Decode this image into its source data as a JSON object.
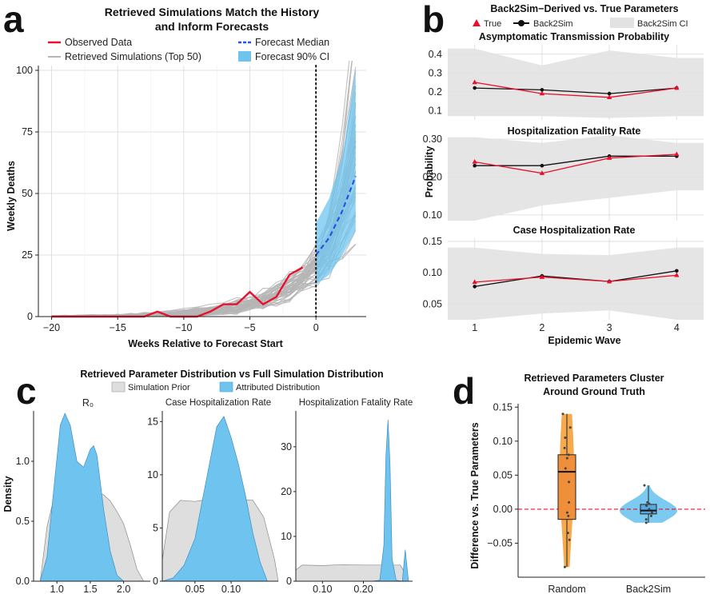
{
  "panel_labels": [
    "a",
    "b",
    "c",
    "d"
  ],
  "chart_data": [
    {
      "panel": "a",
      "type": "line",
      "title": "Retrieved Simulations Match the History and Inform Forecasts",
      "title_lines": [
        "Retrieved Simulations Match the History",
        "and Inform Forecasts"
      ],
      "xlabel": "Weeks Relative to Forecast Start",
      "ylabel": "Weekly Deaths",
      "xlim": [
        -21,
        3.8
      ],
      "ylim": [
        0,
        100
      ],
      "xticks": [
        -20,
        -15,
        -10,
        -5,
        0
      ],
      "yticks": [
        0,
        25,
        50,
        75,
        100
      ],
      "grid": true,
      "legend": [
        "Observed Data",
        "Retrieved Simulations (Top 50)",
        "Forecast Median",
        "Forecast 90% CI"
      ],
      "observed": {
        "x": [
          -20,
          -19,
          -18,
          -17,
          -16,
          -15,
          -14,
          -13,
          -12,
          -11,
          -10,
          -9,
          -8,
          -7,
          -6,
          -5,
          -4,
          -3,
          -2,
          -1
        ],
        "y": [
          0,
          0,
          0,
          0,
          0,
          0,
          0,
          0,
          2,
          0,
          0,
          0,
          2,
          5,
          5,
          10,
          5,
          8,
          17,
          20
        ]
      },
      "forecast_median": {
        "x": [
          0,
          1,
          2,
          3
        ],
        "y": [
          25,
          32,
          43,
          57
        ]
      },
      "forecast_ci": {
        "x": [
          0,
          1,
          2,
          3
        ],
        "lower": [
          13,
          17,
          25,
          35
        ],
        "upper": [
          38,
          48,
          65,
          100
        ]
      },
      "colors": {
        "observed": "#e8112d",
        "simulations": "#b5b5b5",
        "median": "#2155e6",
        "ci": "#6fc4ef"
      }
    },
    {
      "panel": "b",
      "type": "line",
      "title": "Back2Sim−Derived vs. True Parameters",
      "legend": [
        "True",
        "Back2Sim",
        "Back2Sim CI"
      ],
      "xlabel": "Epidemic Wave",
      "ylabel": "Probability",
      "x": [
        1,
        2,
        3,
        4
      ],
      "subplots": [
        {
          "title": "Asymptomatic Transmission Probability",
          "ylim": [
            0.05,
            0.45
          ],
          "yticks": [
            0.1,
            0.2,
            0.3,
            0.4
          ],
          "ytick_labels": [
            "0.1",
            "0.2",
            "0.3",
            "0.4"
          ],
          "true": [
            0.25,
            0.19,
            0.17,
            0.22
          ],
          "back2sim": [
            0.22,
            0.21,
            0.19,
            0.22
          ],
          "ci_lower": [
            0.07,
            0.07,
            0.06,
            0.07
          ],
          "ci_upper": [
            0.43,
            0.34,
            0.42,
            0.38
          ]
        },
        {
          "title": "Hospitalization Fatality Rate",
          "ylim": [
            0.085,
            0.3
          ],
          "yticks": [
            0.1,
            0.2,
            0.3
          ],
          "ytick_labels": [
            "0.10",
            "0.20",
            "0.30"
          ],
          "true": [
            0.24,
            0.21,
            0.25,
            0.26
          ],
          "back2sim": [
            0.23,
            0.23,
            0.255,
            0.255
          ],
          "ci_lower": [
            0.085,
            0.125,
            0.145,
            0.165
          ],
          "ci_upper": [
            0.305,
            0.29,
            0.31,
            0.29
          ]
        },
        {
          "title": "Case Hospitalization Rate",
          "ylim": [
            0.025,
            0.155
          ],
          "yticks": [
            0.05,
            0.1,
            0.15
          ],
          "ytick_labels": [
            "0.05",
            "0.10",
            "0.15"
          ],
          "true": [
            0.085,
            0.093,
            0.086,
            0.096
          ],
          "back2sim": [
            0.078,
            0.095,
            0.086,
            0.103
          ],
          "ci_lower": [
            0.025,
            0.035,
            0.04,
            0.025
          ],
          "ci_upper": [
            0.14,
            0.13,
            0.128,
            0.14
          ]
        }
      ],
      "colors": {
        "true": "#e8112d",
        "back2sim": "#111111",
        "ci": "#e2e2e2"
      }
    },
    {
      "panel": "c",
      "type": "area",
      "title": "Retrieved Parameter Distribution vs Full Simulation Distribution",
      "legend": [
        "Simulation Prior",
        "Attributed Distribution"
      ],
      "ylabel": "Density",
      "subplots": [
        {
          "title": "R₀",
          "xlim": [
            0.65,
            2.4
          ],
          "ylim": [
            0,
            1.42
          ],
          "xticks": [
            1.0,
            1.5,
            2.0
          ],
          "xtick_labels": [
            "1.0",
            "1.5",
            "2.0"
          ],
          "yticks": [
            0.0,
            0.5,
            1.0
          ],
          "ytick_labels": [
            "0.0",
            "0.5",
            "1.0"
          ],
          "prior": {
            "x": [
              0.75,
              0.85,
              1.0,
              1.1,
              1.2,
              1.3,
              1.4,
              1.5,
              1.6,
              1.7,
              1.8,
              1.9,
              2.0,
              2.1,
              2.2,
              2.3
            ],
            "y": [
              0.0,
              0.45,
              0.8,
              0.95,
              1.0,
              0.97,
              0.88,
              0.83,
              0.75,
              0.72,
              0.67,
              0.58,
              0.48,
              0.3,
              0.1,
              0.0
            ]
          },
          "attributed": {
            "x": [
              0.75,
              0.85,
              0.95,
              1.05,
              1.12,
              1.2,
              1.3,
              1.4,
              1.5,
              1.55,
              1.6,
              1.7,
              1.8,
              1.9,
              2.0
            ],
            "y": [
              0.0,
              0.2,
              0.75,
              1.3,
              1.4,
              1.3,
              1.0,
              0.95,
              1.1,
              1.13,
              1.05,
              0.6,
              0.25,
              0.05,
              0.0
            ]
          }
        },
        {
          "title": "Case Hospitalization Rate",
          "xlim": [
            0.005,
            0.165
          ],
          "ylim": [
            0,
            16
          ],
          "xticks": [
            0.05,
            0.1
          ],
          "xtick_labels": [
            "0.05",
            "0.10"
          ],
          "yticks": [
            0,
            5,
            10,
            15
          ],
          "ytick_labels": [
            "0",
            "5",
            "10",
            "15"
          ],
          "prior": {
            "x": [
              0.005,
              0.015,
              0.03,
              0.05,
              0.07,
              0.09,
              0.11,
              0.13,
              0.145,
              0.16,
              0.165
            ],
            "y": [
              2.0,
              6.5,
              7.6,
              7.5,
              7.7,
              7.8,
              7.7,
              7.6,
              6.0,
              2.0,
              0.0
            ]
          },
          "attributed": {
            "x": [
              0.005,
              0.02,
              0.035,
              0.05,
              0.06,
              0.07,
              0.08,
              0.09,
              0.1,
              0.11,
              0.12,
              0.13,
              0.14,
              0.15
            ],
            "y": [
              0.0,
              0.3,
              1.5,
              4.0,
              7.5,
              11.0,
              14.5,
              15.5,
              13.5,
              11.0,
              8.0,
              4.5,
              1.8,
              0.0
            ]
          }
        },
        {
          "title": "Hospitalization Fatality Rate",
          "xlim": [
            0.035,
            0.32
          ],
          "ylim": [
            0,
            38
          ],
          "xticks": [
            0.1,
            0.2
          ],
          "xtick_labels": [
            "0.10",
            "0.20"
          ],
          "yticks": [
            0,
            10,
            20,
            30
          ],
          "ytick_labels": [
            "0",
            "10",
            "20",
            "30"
          ],
          "prior": {
            "x": [
              0.035,
              0.05,
              0.1,
              0.15,
              0.2,
              0.25,
              0.29,
              0.3,
              0.31
            ],
            "y": [
              2.5,
              3.6,
              3.5,
              3.7,
              3.6,
              3.6,
              3.6,
              2.0,
              0.0
            ]
          },
          "attributed": {
            "x": [
              0.22,
              0.24,
              0.25,
              0.255,
              0.26,
              0.265,
              0.27,
              0.28,
              0.295,
              0.302,
              0.31
            ],
            "y": [
              0.0,
              0.2,
              8.0,
              28.0,
              36.0,
              26.0,
              5.0,
              0.2,
              0.0,
              7.0,
              0.0
            ]
          }
        }
      ],
      "colors": {
        "prior": "#dedede",
        "attributed": "#6fc4ef"
      }
    },
    {
      "panel": "d",
      "type": "box",
      "title": "Retrieved Parameters Cluster Around Ground Truth",
      "title_lines": [
        "Retrieved Parameters Cluster",
        "Around Ground Truth"
      ],
      "ylabel": "Difference vs. True Parameters",
      "categories": [
        "Random",
        "Back2Sim"
      ],
      "ylim": [
        -0.1,
        0.155
      ],
      "yticks": [
        -0.05,
        0.0,
        0.05,
        0.1,
        0.15
      ],
      "ytick_labels": [
        "−0.05",
        "0.00",
        "0.05",
        "0.10",
        "0.15"
      ],
      "reference_line": 0,
      "boxes": [
        {
          "name": "Random",
          "q1": -0.015,
          "median": 0.055,
          "q3": 0.08,
          "whisker_low": -0.085,
          "whisker_high": 0.14,
          "points": [
            0.14,
            0.12,
            0.105,
            0.09,
            0.08,
            0.075,
            0.06,
            0.04,
            0.01,
            -0.005,
            -0.01,
            -0.035,
            -0.045,
            -0.085
          ]
        },
        {
          "name": "Back2Sim",
          "q1": -0.007,
          "median": -0.002,
          "q3": 0.007,
          "whisker_low": -0.02,
          "whisker_high": 0.035,
          "points": [
            0.035,
            0.01,
            0.008,
            0.005,
            0.0,
            -0.005,
            -0.01,
            -0.015,
            -0.02
          ]
        }
      ],
      "colors": {
        "random": "#f5a13a",
        "back2sim": "#6fc4ef",
        "reference": "#e8112d"
      }
    }
  ]
}
